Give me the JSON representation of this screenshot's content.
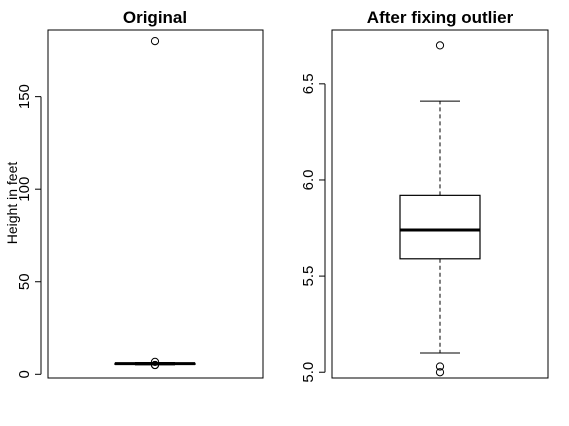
{
  "chart_data": [
    {
      "type": "boxplot",
      "title": "Original",
      "ylabel": "Height in feet",
      "xlabel": "",
      "ylim": [
        -2,
        186
      ],
      "yticks": [
        0,
        50,
        100,
        150
      ],
      "box": {
        "min": 5.1,
        "q1": 5.6,
        "median": 5.75,
        "q3": 5.9,
        "max": 6.4
      },
      "outliers": [
        180,
        6.7,
        5.0,
        5.03
      ]
    },
    {
      "type": "boxplot",
      "title": "After fixing outlier",
      "ylabel": "",
      "xlabel": "",
      "ylim": [
        4.97,
        6.78
      ],
      "yticks": [
        5.0,
        5.5,
        6.0,
        6.5
      ],
      "ytick_labels": [
        "5.0",
        "5.5",
        "6.0",
        "6.5"
      ],
      "box": {
        "min": 5.1,
        "q1": 5.59,
        "median": 5.74,
        "q3": 5.92,
        "max": 6.41
      },
      "outliers": [
        6.7,
        5.03,
        5.0
      ]
    }
  ]
}
